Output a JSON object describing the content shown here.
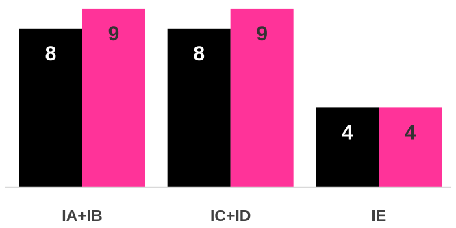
{
  "chart_data": {
    "type": "bar",
    "categories": [
      "IA+IB",
      "IC+ID",
      "IE"
    ],
    "series": [
      {
        "values": [
          8,
          8,
          4
        ],
        "color": "#000000",
        "label_color": "#ffffff"
      },
      {
        "values": [
          9,
          9,
          4
        ],
        "color": "#ff3399",
        "label_color": "#333333"
      }
    ],
    "ylim": [
      0,
      10
    ],
    "grid": false,
    "legend": "none",
    "axis_color": "#d9d9d9",
    "category_label_color": "#404040"
  }
}
